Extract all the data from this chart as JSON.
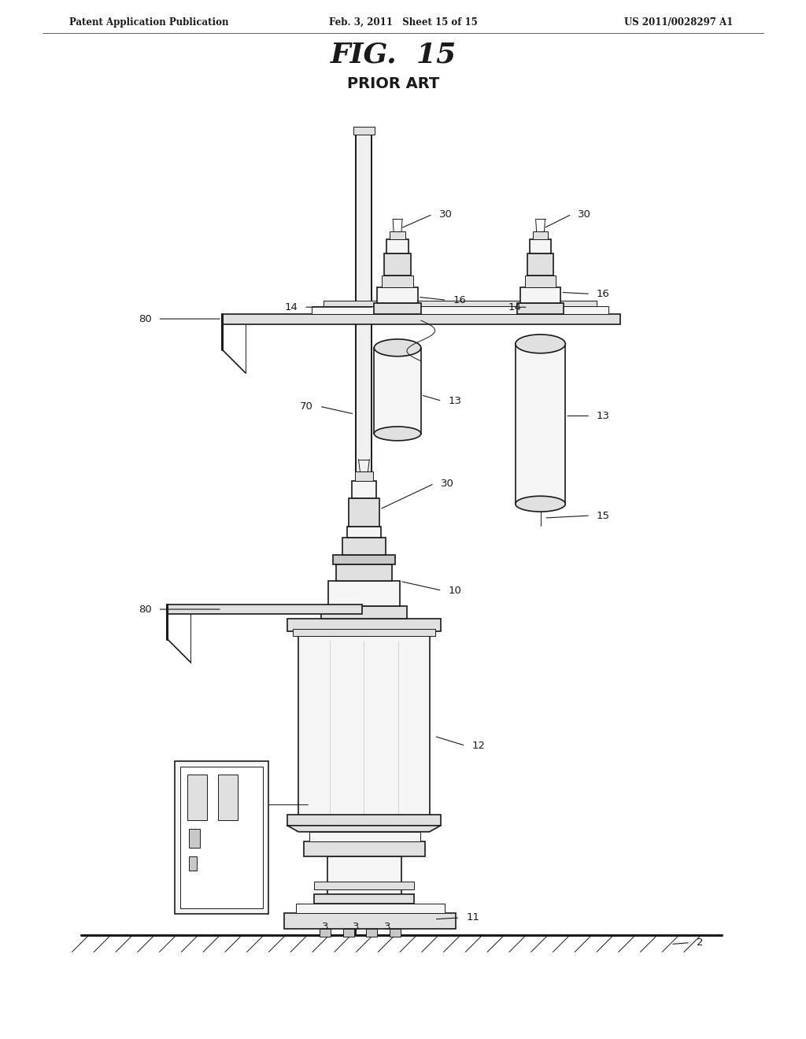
{
  "title": "FIG.  15",
  "subtitle": "PRIOR ART",
  "header_left": "Patent Application Publication",
  "header_center": "Feb. 3, 2011   Sheet 15 of 15",
  "header_right": "US 2011/0028297 A1",
  "bg_color": "#ffffff",
  "line_color": "#1a1a1a",
  "gray_fill": "#e0e0e0",
  "light_fill": "#f5f5f5",
  "dark_fill": "#c8c8c8"
}
